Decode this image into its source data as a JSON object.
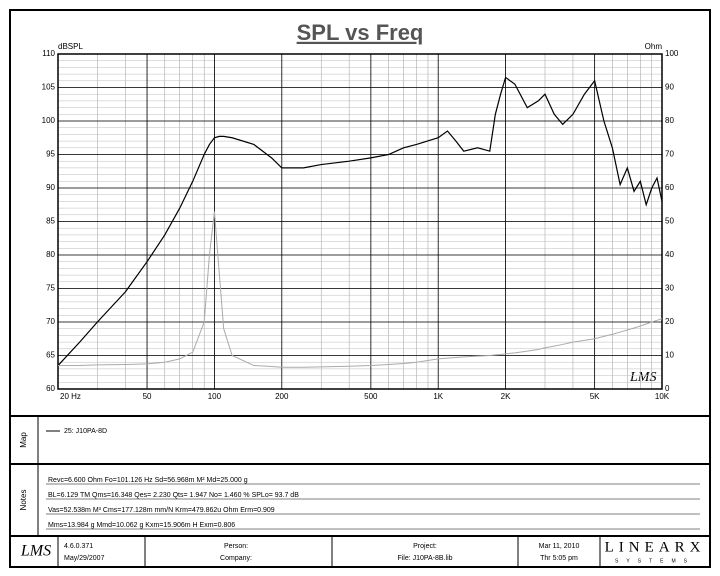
{
  "chart_data": {
    "type": "line",
    "title": "SPL vs Freq",
    "ylabel": "dBSPL",
    "y2label": "Ohm",
    "x": [
      20,
      25,
      30,
      40,
      50,
      60,
      70,
      80,
      90,
      95,
      100,
      105,
      110,
      120,
      150,
      180,
      200,
      250,
      300,
      400,
      500,
      600,
      700,
      800,
      1000,
      1100,
      1200,
      1300,
      1500,
      1700,
      1800,
      1900,
      2000,
      2200,
      2500,
      2800,
      3000,
      3300,
      3600,
      4000,
      4500,
      5000,
      5500,
      6000,
      6500,
      7000,
      7500,
      8000,
      8500,
      9000,
      9500,
      10000
    ],
    "series": [
      {
        "name": "25: J10PA-8D",
        "color": "#000000",
        "values": [
          63.5,
          67,
          70,
          74.5,
          79,
          83,
          87,
          91,
          95,
          96.5,
          97.5,
          97.7,
          97.7,
          97.5,
          96.5,
          94.5,
          93,
          93,
          93.5,
          94,
          94.5,
          95,
          96,
          96.5,
          97.5,
          98.5,
          97,
          95.5,
          96,
          95.5,
          101,
          104,
          106.5,
          105.5,
          102,
          103,
          104,
          101,
          99.5,
          101,
          104,
          106,
          100,
          96,
          90.5,
          93,
          89.5,
          91,
          87.5,
          90,
          91.5,
          88
        ]
      },
      {
        "color": "#aaaaaa",
        "axis": "y2",
        "values": [
          7,
          7,
          7.2,
          7.3,
          7.5,
          8,
          9,
          11,
          20,
          40,
          53,
          35,
          18,
          10,
          7,
          6.7,
          6.5,
          6.5,
          6.6,
          6.8,
          7,
          7.3,
          7.6,
          8,
          9,
          9.2,
          9.4,
          9.6,
          9.8,
          10,
          10.2,
          10.3,
          10.5,
          10.8,
          11.3,
          11.8,
          12.3,
          12.8,
          13.3,
          14,
          14.5,
          15,
          15.7,
          16.3,
          17,
          17.6,
          18.2,
          18.8,
          19.4,
          20,
          20.5,
          21
        ]
      }
    ],
    "xscale": "log",
    "xlim": [
      20,
      10000
    ],
    "xticks": [
      {
        "value": 20,
        "label": "20 Hz"
      },
      50,
      100,
      200,
      500,
      {
        "value": 1000,
        "label": "1K"
      },
      {
        "value": 2000,
        "label": "2K"
      },
      {
        "value": 5000,
        "label": "5K"
      },
      {
        "value": 10000,
        "label": "10K"
      }
    ],
    "ylim": [
      60,
      110
    ],
    "yticks": [
      60,
      65,
      70,
      75,
      80,
      85,
      90,
      95,
      100,
      105,
      110
    ],
    "y2lim": [
      0,
      100
    ],
    "y2ticks": [
      0,
      10,
      20,
      30,
      40,
      50,
      60,
      70,
      80,
      90,
      100
    ],
    "grid": true,
    "watermark": "LMS"
  },
  "map": {
    "label": "Map"
  },
  "notes": {
    "label": "Notes",
    "lines": [
      "Revc=6.600 Ohm  Fo=101.126 Hz  Sd=56.968m M² Md=25.000 g",
      "BL=6.129 TM  Qms=16.348  Qes= 2.230  Qts= 1.947  No= 1.460 %  SPLo= 93.7 dB",
      "Vas=52.538m M³  Cms=177.128m mm/N  Krm=479.862u Ohm  Erm=0.909",
      "Mms=13.984 g  Mmd=10.062 g  Kxm=15.906m H  Exm=0.806"
    ]
  },
  "footer": {
    "logo": "LMS",
    "version": "4.6.0.371",
    "version_date": "May/29/2007",
    "person": "Person:",
    "company": "Company:",
    "project": "Project:",
    "file": "File: J10PA-8B.lib",
    "date": "Mar 11, 2010",
    "time": "Thr 5:05 pm",
    "brand": "LINEARX",
    "brand_sub": "SYSTEMS"
  }
}
